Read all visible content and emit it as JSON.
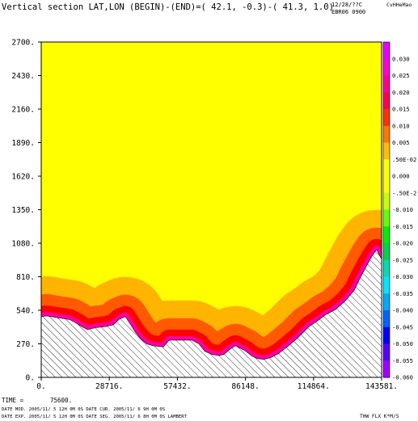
{
  "chart_data": {
    "type": "area",
    "title": "Vertical section LAT,LON (BEGIN)-(END)=( 42.1, -0.3)-( 41.3, 1.0)",
    "header_right": [
      "12/28/??C",
      "EBR06 0900"
    ],
    "header_logo": "CvHHeMao",
    "xlabel": "",
    "ylabel": "",
    "xlim": [
      0,
      143581
    ],
    "ylim": [
      0,
      2700
    ],
    "x_ticks": [
      0,
      28716,
      57432,
      86148,
      114864,
      143581
    ],
    "x_tick_labels": [
      "0.",
      "28716.",
      "57432.",
      "86148.",
      "114864.",
      "143581."
    ],
    "y_ticks": [
      0,
      270,
      540,
      810,
      1080,
      1350,
      1620,
      1890,
      2160,
      2430,
      2700
    ],
    "y_tick_labels": [
      "0.",
      "270.",
      "540.",
      "810.",
      "1080.",
      "1350.",
      "1620.",
      "1890.",
      "2160.",
      "2430.",
      "2700."
    ],
    "terrain_profile": {
      "x": [
        0,
        2300,
        7000,
        12000,
        15000,
        17000,
        19500,
        23000,
        27500,
        30500,
        33000,
        35500,
        37500,
        39500,
        42000,
        44500,
        47000,
        49500,
        51500,
        54000,
        57000,
        60000,
        63500,
        66500,
        69000,
        72000,
        75000,
        77000,
        79500,
        82000,
        86000,
        89000,
        91500,
        94000,
        97000,
        100000,
        104000,
        108000,
        113000,
        116500,
        120000,
        124000,
        128000,
        132000,
        134500,
        137000,
        139500,
        141500,
        142500,
        143581
      ],
      "y": [
        490,
        495,
        480,
        465,
        435,
        410,
        385,
        400,
        410,
        425,
        470,
        490,
        430,
        370,
        310,
        270,
        255,
        250,
        245,
        300,
        300,
        300,
        300,
        270,
        210,
        185,
        175,
        185,
        225,
        255,
        215,
        170,
        150,
        145,
        160,
        190,
        250,
        315,
        410,
        455,
        505,
        545,
        610,
        700,
        800,
        890,
        975,
        1030,
        990,
        950
      ]
    },
    "contour_fill": {
      "background_level": "0.000",
      "background_color": "#ffff00",
      "bands": [
        {
          "level": "0.005",
          "color": "#ffb400",
          "thickness": 22
        },
        {
          "level": "0.010",
          "color": "#ff5a00",
          "thickness": 14
        },
        {
          "level": "0.015",
          "color": "#ff0000",
          "thickness": 8
        },
        {
          "level": "0.020",
          "color": "#ff00a0",
          "thickness": 5
        }
      ]
    },
    "colorbar": {
      "labels": [
        "0.030",
        "0.025",
        "0.020",
        "0.015",
        "0.010",
        "0.005",
        ".50E-02",
        "0.000",
        "-.50E-2",
        "-0.010",
        "-0.015",
        "-0.020",
        "-0.025",
        "-0.030",
        "-0.035",
        "-0.040",
        "-0.045",
        "-0.050",
        "-0.055",
        "-0.060"
      ],
      "colors": [
        "#e600ff",
        "#ff00d2",
        "#ff0096",
        "#ff0050",
        "#ff3200",
        "#ff7800",
        "#ffbe00",
        "#ffff00",
        "#ffff00",
        "#c8ff00",
        "#64ff00",
        "#00f000",
        "#00d250",
        "#00dcb4",
        "#00e6ff",
        "#00aaff",
        "#0064ff",
        "#0000ff",
        "#5a00ff",
        "#a000ff"
      ]
    },
    "footer": {
      "time_label": "TIME =",
      "time_value": "75600.",
      "line1": "DATE MOD. 2005/11/ 5  12H 0M 0S   DATE CUR. 2005/11/ 6   9H 0M 0S",
      "line2": "DATE EXP. 2005/11/ 5  12H 0M 0S   DATE SEG. 2005/11/ 6   8H 0M 0S   LAMBERT",
      "variable": "THW FLX K*M/S"
    }
  }
}
